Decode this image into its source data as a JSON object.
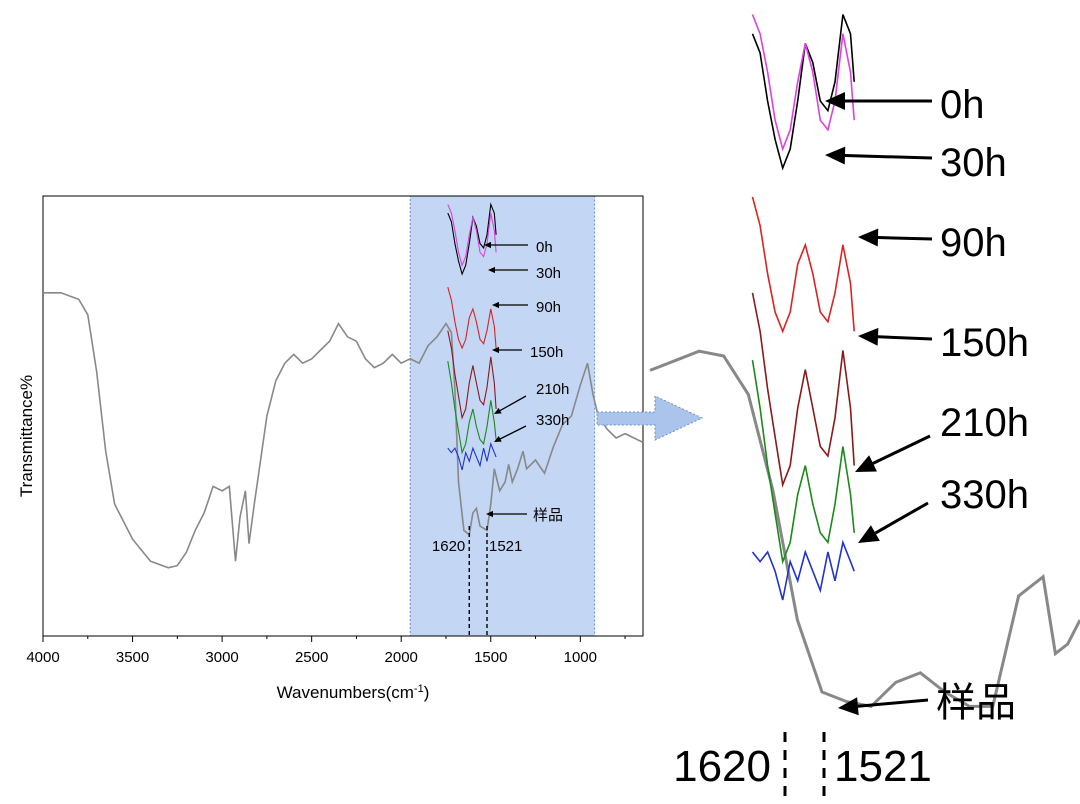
{
  "chart_data": [
    {
      "type": "line",
      "title": "",
      "xlabel": "Wavenumbers(cm",
      "xlabel_sup": "-1",
      "xlabel_close": ")",
      "ylabel": "Transmittance%",
      "x_reversed": true,
      "xlim": [
        4000,
        650
      ],
      "xticks": [
        4000,
        3500,
        3000,
        2500,
        2000,
        1500,
        1000
      ],
      "grid": false,
      "highlight_region": {
        "x_from": 1950,
        "x_to": 920,
        "color": "#c3d6f4"
      },
      "series": [
        {
          "color": "#888888",
          "points": [
            [
              4000,
              0.78
            ],
            [
              3900,
              0.78
            ],
            [
              3800,
              0.765
            ],
            [
              3750,
              0.73
            ],
            [
              3700,
              0.6
            ],
            [
              3650,
              0.42
            ],
            [
              3600,
              0.3
            ],
            [
              3500,
              0.22
            ],
            [
              3400,
              0.17
            ],
            [
              3300,
              0.155
            ],
            [
              3250,
              0.16
            ],
            [
              3200,
              0.19
            ],
            [
              3150,
              0.24
            ],
            [
              3100,
              0.28
            ],
            [
              3050,
              0.34
            ],
            [
              3000,
              0.33
            ],
            [
              2960,
              0.34
            ],
            [
              2925,
              0.17
            ],
            [
              2900,
              0.27
            ],
            [
              2870,
              0.33
            ],
            [
              2850,
              0.21
            ],
            [
              2820,
              0.3
            ],
            [
              2750,
              0.5
            ],
            [
              2700,
              0.58
            ],
            [
              2650,
              0.62
            ],
            [
              2600,
              0.64
            ],
            [
              2550,
              0.62
            ],
            [
              2500,
              0.63
            ],
            [
              2450,
              0.65
            ],
            [
              2400,
              0.67
            ],
            [
              2350,
              0.71
            ],
            [
              2300,
              0.68
            ],
            [
              2250,
              0.67
            ],
            [
              2200,
              0.63
            ],
            [
              2150,
              0.61
            ],
            [
              2100,
              0.62
            ],
            [
              2050,
              0.64
            ],
            [
              2000,
              0.62
            ],
            [
              1950,
              0.63
            ],
            [
              1900,
              0.62
            ],
            [
              1850,
              0.66
            ],
            [
              1800,
              0.68
            ],
            [
              1750,
              0.71
            ],
            [
              1720,
              0.69
            ],
            [
              1700,
              0.56
            ],
            [
              1680,
              0.35
            ],
            [
              1650,
              0.24
            ],
            [
              1620,
              0.23
            ],
            [
              1600,
              0.28
            ],
            [
              1580,
              0.29
            ],
            [
              1560,
              0.25
            ],
            [
              1521,
              0.24
            ],
            [
              1500,
              0.3
            ],
            [
              1480,
              0.38
            ],
            [
              1450,
              0.33
            ],
            [
              1420,
              0.35
            ],
            [
              1400,
              0.39
            ],
            [
              1380,
              0.35
            ],
            [
              1350,
              0.38
            ],
            [
              1320,
              0.42
            ],
            [
              1300,
              0.38
            ],
            [
              1250,
              0.4
            ],
            [
              1200,
              0.37
            ],
            [
              1150,
              0.43
            ],
            [
              1100,
              0.48
            ],
            [
              1050,
              0.5
            ],
            [
              1000,
              0.57
            ],
            [
              960,
              0.62
            ],
            [
              930,
              0.55
            ],
            [
              900,
              0.5
            ],
            [
              850,
              0.47
            ],
            [
              800,
              0.45
            ],
            [
              750,
              0.46
            ],
            [
              700,
              0.45
            ],
            [
              650,
              0.44
            ]
          ]
        }
      ],
      "offset_series": [
        {
          "name": "0h",
          "color": "#000000",
          "points": [
            [
              1740,
              0.97
            ],
            [
              1720,
              0.95
            ],
            [
              1700,
              0.9
            ],
            [
              1680,
              0.86
            ],
            [
              1660,
              0.83
            ],
            [
              1640,
              0.85
            ],
            [
              1620,
              0.9
            ],
            [
              1600,
              0.96
            ],
            [
              1580,
              0.94
            ],
            [
              1560,
              0.9
            ],
            [
              1540,
              0.89
            ],
            [
              1521,
              0.92
            ],
            [
              1500,
              0.99
            ],
            [
              1480,
              0.97
            ],
            [
              1470,
              0.92
            ]
          ]
        },
        {
          "name": "30h",
          "color": "#e040e0",
          "points": [
            [
              1740,
              0.99
            ],
            [
              1720,
              0.97
            ],
            [
              1700,
              0.93
            ],
            [
              1680,
              0.88
            ],
            [
              1660,
              0.85
            ],
            [
              1640,
              0.87
            ],
            [
              1620,
              0.92
            ],
            [
              1600,
              0.96
            ],
            [
              1580,
              0.93
            ],
            [
              1560,
              0.88
            ],
            [
              1540,
              0.87
            ],
            [
              1521,
              0.9
            ],
            [
              1500,
              0.97
            ],
            [
              1480,
              0.93
            ],
            [
              1470,
              0.88
            ]
          ]
        },
        {
          "name": "90h",
          "color": "#dd2222",
          "points": [
            [
              1740,
              0.8
            ],
            [
              1720,
              0.77
            ],
            [
              1700,
              0.72
            ],
            [
              1680,
              0.68
            ],
            [
              1660,
              0.66
            ],
            [
              1640,
              0.68
            ],
            [
              1620,
              0.73
            ],
            [
              1600,
              0.75
            ],
            [
              1580,
              0.72
            ],
            [
              1560,
              0.68
            ],
            [
              1540,
              0.67
            ],
            [
              1521,
              0.7
            ],
            [
              1500,
              0.75
            ],
            [
              1480,
              0.71
            ],
            [
              1470,
              0.66
            ]
          ]
        },
        {
          "name": "150h",
          "color": "#8b1a1a",
          "points": [
            [
              1740,
              0.7
            ],
            [
              1720,
              0.66
            ],
            [
              1700,
              0.6
            ],
            [
              1680,
              0.55
            ],
            [
              1660,
              0.5
            ],
            [
              1640,
              0.52
            ],
            [
              1620,
              0.58
            ],
            [
              1600,
              0.62
            ],
            [
              1580,
              0.58
            ],
            [
              1560,
              0.54
            ],
            [
              1540,
              0.53
            ],
            [
              1521,
              0.57
            ],
            [
              1500,
              0.64
            ],
            [
              1480,
              0.58
            ],
            [
              1470,
              0.52
            ]
          ]
        },
        {
          "name": "210h",
          "color": "#1a8a1a",
          "points": [
            [
              1740,
              0.63
            ],
            [
              1720,
              0.58
            ],
            [
              1700,
              0.52
            ],
            [
              1680,
              0.47
            ],
            [
              1660,
              0.42
            ],
            [
              1640,
              0.44
            ],
            [
              1620,
              0.49
            ],
            [
              1600,
              0.52
            ],
            [
              1580,
              0.48
            ],
            [
              1560,
              0.45
            ],
            [
              1540,
              0.44
            ],
            [
              1521,
              0.48
            ],
            [
              1500,
              0.54
            ],
            [
              1480,
              0.49
            ],
            [
              1470,
              0.45
            ]
          ]
        },
        {
          "name": "330h",
          "color": "#2233cc",
          "points": [
            [
              1740,
              0.43
            ],
            [
              1720,
              0.42
            ],
            [
              1700,
              0.43
            ],
            [
              1680,
              0.41
            ],
            [
              1660,
              0.38
            ],
            [
              1640,
              0.42
            ],
            [
              1620,
              0.4
            ],
            [
              1600,
              0.43
            ],
            [
              1580,
              0.41
            ],
            [
              1560,
              0.39
            ],
            [
              1540,
              0.43
            ],
            [
              1521,
              0.4
            ],
            [
              1500,
              0.44
            ],
            [
              1480,
              0.42
            ],
            [
              1470,
              0.41
            ]
          ]
        }
      ],
      "annotations": [
        {
          "text": "0h",
          "target": "0h"
        },
        {
          "text": "30h",
          "target": "30h"
        },
        {
          "text": "90h",
          "target": "90h"
        },
        {
          "text": "150h",
          "target": "150h"
        },
        {
          "text": "210h",
          "target": "210h"
        },
        {
          "text": "330h",
          "target": "330h"
        },
        {
          "text": "样品",
          "target": "sample"
        },
        {
          "text": "1620",
          "x": 1620
        },
        {
          "text": "1521",
          "x": 1521
        }
      ]
    },
    {
      "type": "line",
      "title": "",
      "xlabel": "",
      "ylabel": "",
      "x_reversed": true,
      "xlim": [
        1800,
        1450
      ],
      "grid": false,
      "axes_visible": false,
      "series": [
        {
          "color": "#888888",
          "points": [
            [
              1800,
              0.77
            ],
            [
              1780,
              0.79
            ],
            [
              1760,
              0.81
            ],
            [
              1740,
              0.8
            ],
            [
              1720,
              0.72
            ],
            [
              1700,
              0.52
            ],
            [
              1680,
              0.25
            ],
            [
              1660,
              0.1
            ],
            [
              1640,
              0.08
            ],
            [
              1620,
              0.07
            ],
            [
              1600,
              0.12
            ],
            [
              1580,
              0.14
            ],
            [
              1560,
              0.1
            ],
            [
              1540,
              0.07
            ],
            [
              1521,
              0.07
            ],
            [
              1500,
              0.3
            ],
            [
              1480,
              0.34
            ],
            [
              1470,
              0.18
            ],
            [
              1460,
              0.2
            ],
            [
              1450,
              0.25
            ]
          ]
        }
      ],
      "offset_series": [
        {
          "name": "0h",
          "color": "#000000"
        },
        {
          "name": "30h",
          "color": "#e040e0"
        },
        {
          "name": "90h",
          "color": "#dd2222"
        },
        {
          "name": "150h",
          "color": "#8b1a1a"
        },
        {
          "name": "210h",
          "color": "#1a8a1a"
        },
        {
          "name": "330h",
          "color": "#2233cc"
        }
      ],
      "annotations": [
        {
          "text": "0h",
          "target": "0h"
        },
        {
          "text": "30h",
          "target": "30h"
        },
        {
          "text": "90h",
          "target": "90h"
        },
        {
          "text": "150h",
          "target": "150h"
        },
        {
          "text": "210h",
          "target": "210h"
        },
        {
          "text": "330h",
          "target": "330h"
        },
        {
          "text": "样品",
          "target": "sample"
        },
        {
          "text": "1620",
          "x": 1620
        },
        {
          "text": "1521",
          "x": 1521
        }
      ]
    }
  ]
}
